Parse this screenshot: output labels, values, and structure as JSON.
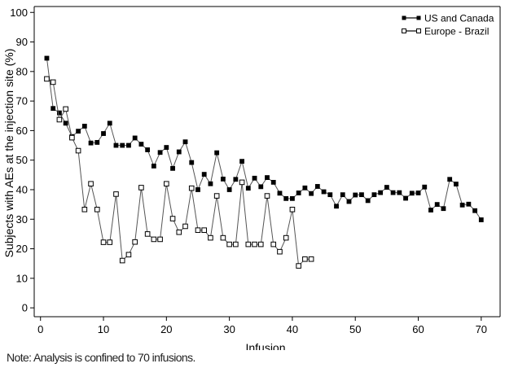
{
  "chart_data": {
    "type": "line",
    "xlabel": "Infusion",
    "ylabel": "Subjects with AEs at the injection site (%)",
    "xlim": [
      -1,
      73
    ],
    "ylim": [
      -3,
      102
    ],
    "xticks": [
      0,
      10,
      20,
      30,
      40,
      50,
      60,
      70
    ],
    "yticks": [
      0,
      10,
      20,
      30,
      40,
      50,
      60,
      70,
      80,
      90,
      100
    ],
    "grid": false,
    "legend_position": "top-right",
    "series": [
      {
        "name": "US and Canada",
        "marker": "filled",
        "color": "#000000",
        "x": [
          1,
          2,
          3,
          4,
          5,
          6,
          7,
          8,
          9,
          10,
          11,
          12,
          13,
          14,
          15,
          16,
          17,
          18,
          19,
          20,
          21,
          22,
          23,
          24,
          25,
          26,
          27,
          28,
          29,
          30,
          31,
          32,
          33,
          34,
          35,
          36,
          37,
          38,
          39,
          40,
          41,
          42,
          43,
          44,
          45,
          46,
          47,
          48,
          49,
          50,
          51,
          52,
          53,
          54,
          55,
          56,
          57,
          58,
          59,
          60,
          61,
          62,
          63,
          64,
          65,
          66,
          67,
          68,
          69,
          70
        ],
        "values": [
          84.5,
          67.5,
          66,
          62.5,
          58,
          59.8,
          61.5,
          55.8,
          56,
          59,
          62.5,
          55,
          55,
          55,
          57.5,
          55.4,
          53.5,
          48,
          52.6,
          54.3,
          47.2,
          52.8,
          56.2,
          49.2,
          40,
          45.2,
          42,
          52.5,
          43.6,
          40,
          43.5,
          49.6,
          40.5,
          43.9,
          41,
          44.1,
          42.5,
          38.8,
          37,
          37,
          38.9,
          40.6,
          38.7,
          41.1,
          39.3,
          38.3,
          34.4,
          38.3,
          36,
          38.2,
          38.3,
          36.3,
          38.3,
          39,
          40.8,
          39,
          39,
          37.1,
          38.8,
          38.9,
          40.9,
          33.1,
          35,
          33.6,
          43.5,
          41.9,
          34.8,
          35.1,
          32.9,
          29.8
        ]
      },
      {
        "name": "Europe - Brazil",
        "marker": "open",
        "color": "#000000",
        "x": [
          1,
          2,
          3,
          4,
          5,
          6,
          7,
          8,
          9,
          10,
          11,
          12,
          13,
          14,
          15,
          16,
          17,
          18,
          19,
          20,
          21,
          22,
          23,
          24,
          25,
          26,
          27,
          28,
          29,
          30,
          31,
          32,
          33,
          34,
          35,
          36,
          37,
          38,
          39,
          40,
          41,
          42,
          43
        ],
        "values": [
          77.5,
          76.4,
          63.7,
          67.3,
          57.6,
          53.2,
          33.3,
          42,
          33.3,
          22.2,
          22.2,
          38.5,
          16,
          18,
          22.3,
          40.7,
          25,
          23.2,
          23.2,
          42,
          30.2,
          25.6,
          27.6,
          40.5,
          26.3,
          26.3,
          23.7,
          37.9,
          23.7,
          21.5,
          21.5,
          42.5,
          21.5,
          21.5,
          21.5,
          37.9,
          21.5,
          19,
          23.7,
          33.3,
          14.2,
          16.5,
          16.5
        ]
      }
    ]
  },
  "footnote": "Note: Analysis is confined to 70 infusions."
}
